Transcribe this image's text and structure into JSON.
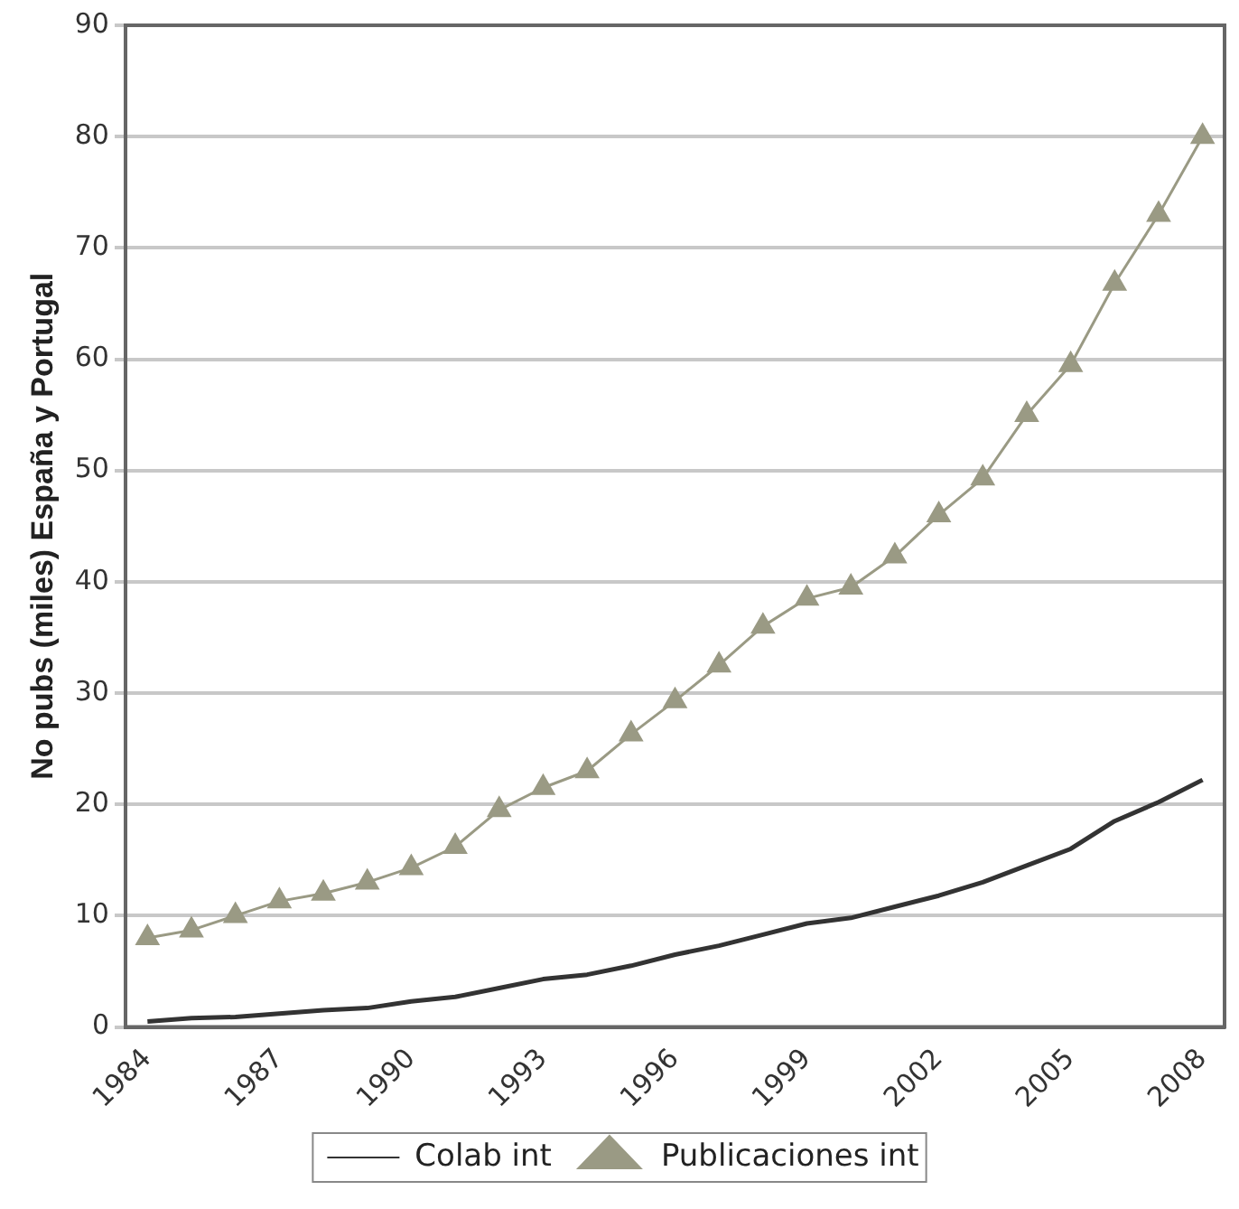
{
  "chart_data": {
    "type": "line",
    "ylabel": "No pubs (miles) España y Portugal",
    "categories": [
      "1984",
      null,
      null,
      "1987",
      null,
      null,
      "1990",
      null,
      null,
      "1993",
      null,
      null,
      "1996",
      null,
      null,
      "1999",
      null,
      null,
      "2002",
      null,
      null,
      "2005",
      null,
      null,
      "2008"
    ],
    "series": [
      {
        "name": "Colab int",
        "color": "#333333",
        "marker": "none",
        "values": [
          0.5,
          0.8,
          0.9,
          1.2,
          1.5,
          1.7,
          2.3,
          2.7,
          3.5,
          4.3,
          4.7,
          5.5,
          6.5,
          7.3,
          8.3,
          9.3,
          9.8,
          10.8,
          11.8,
          13,
          14.5,
          16,
          18.5,
          20.2,
          22.2
        ]
      },
      {
        "name": "Publicaciones int",
        "color": "#9a9a84",
        "marker": "triangle",
        "values": [
          8,
          8.7,
          10,
          11.3,
          12,
          13,
          14.3,
          16.2,
          19.5,
          21.5,
          23,
          26.3,
          29.3,
          32.5,
          36,
          38.5,
          39.5,
          42.3,
          46,
          49.3,
          55,
          59.5,
          66.8,
          73,
          80
        ]
      }
    ],
    "ylim": [
      0,
      90
    ],
    "yticks": [
      0,
      10,
      20,
      30,
      40,
      50,
      60,
      70,
      80,
      90
    ],
    "grid": "y",
    "legend": "bottom",
    "line_style": "solid"
  }
}
